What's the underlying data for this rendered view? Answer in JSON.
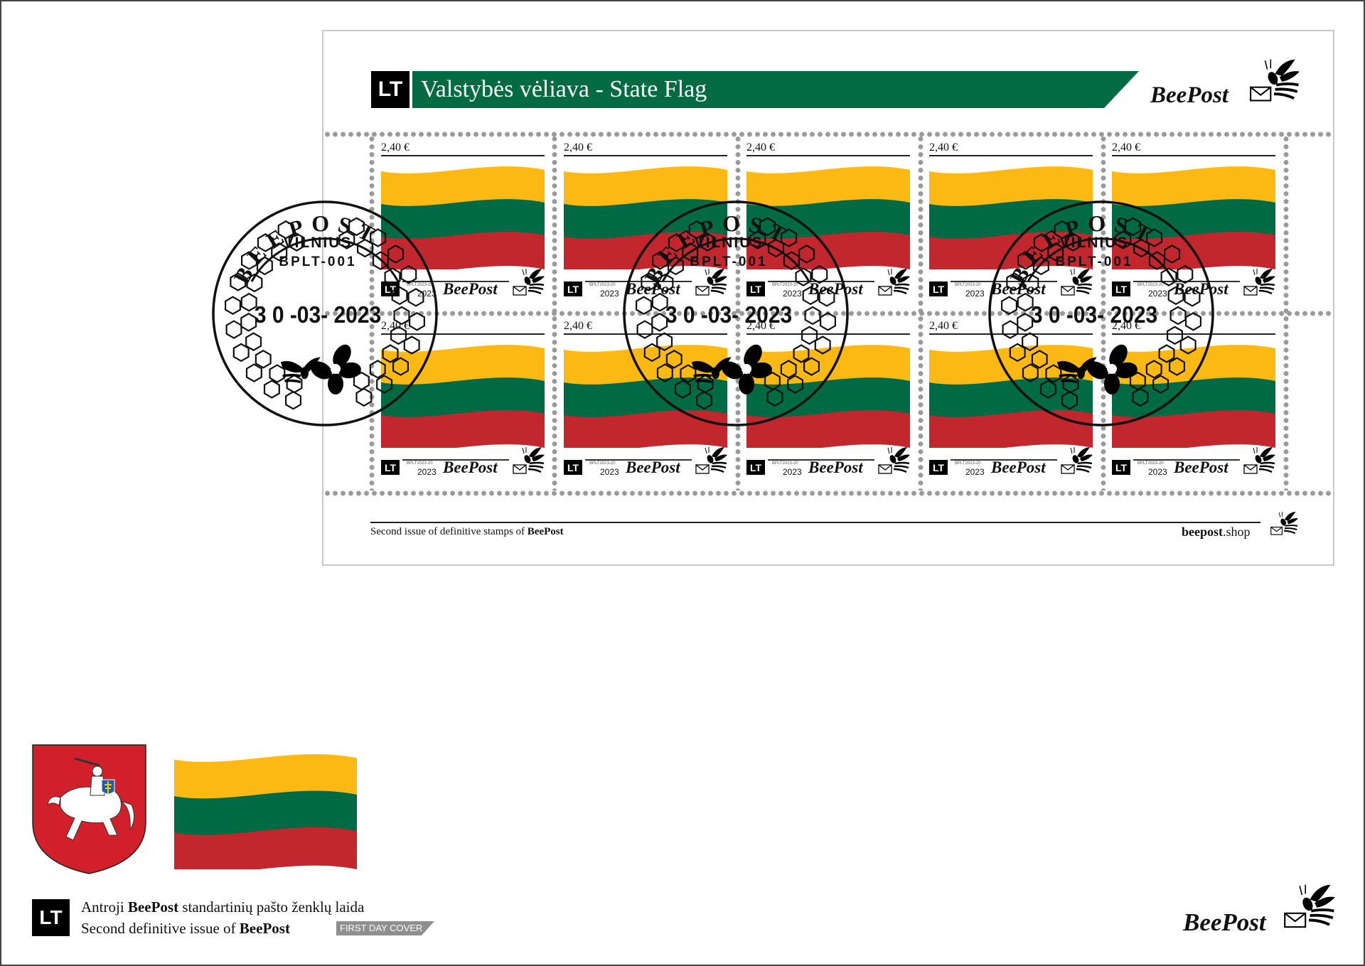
{
  "sheet": {
    "country_code": "LT",
    "title": "Valstybės vėliava - State Flag",
    "brand": "BeePost",
    "footer_left_prefix": "Second issue of definitive stamps of ",
    "footer_left_brand": "BeePost",
    "footer_right_bold": "beepost",
    "footer_right_rest": ".shop"
  },
  "stamp": {
    "price": "2,40 €",
    "country_code": "LT",
    "code": "BPLT2023-20",
    "year": "2023",
    "brand": "BeePost",
    "count": 10
  },
  "postmark": {
    "arc_text": "BEEPOST",
    "city": "VILNIUS",
    "office": "BPLT-001",
    "date": "3 0 -03- 2023",
    "count": 3
  },
  "flag_colors": {
    "yellow": "#FDB913",
    "green": "#006A44",
    "red": "#C1272D"
  },
  "colors": {
    "title_band": "#036B43",
    "coat_red": "#D2202A"
  },
  "cover": {
    "country_code": "LT",
    "line1_prefix": "Antroji ",
    "line1_brand": "BeePost",
    "line1_rest": " standartinių pašto ženklų laida",
    "line2_prefix": "Second definitive issue of ",
    "line2_brand": "BeePost",
    "badge": "FIRST DAY COVER",
    "brand": "BeePost"
  }
}
